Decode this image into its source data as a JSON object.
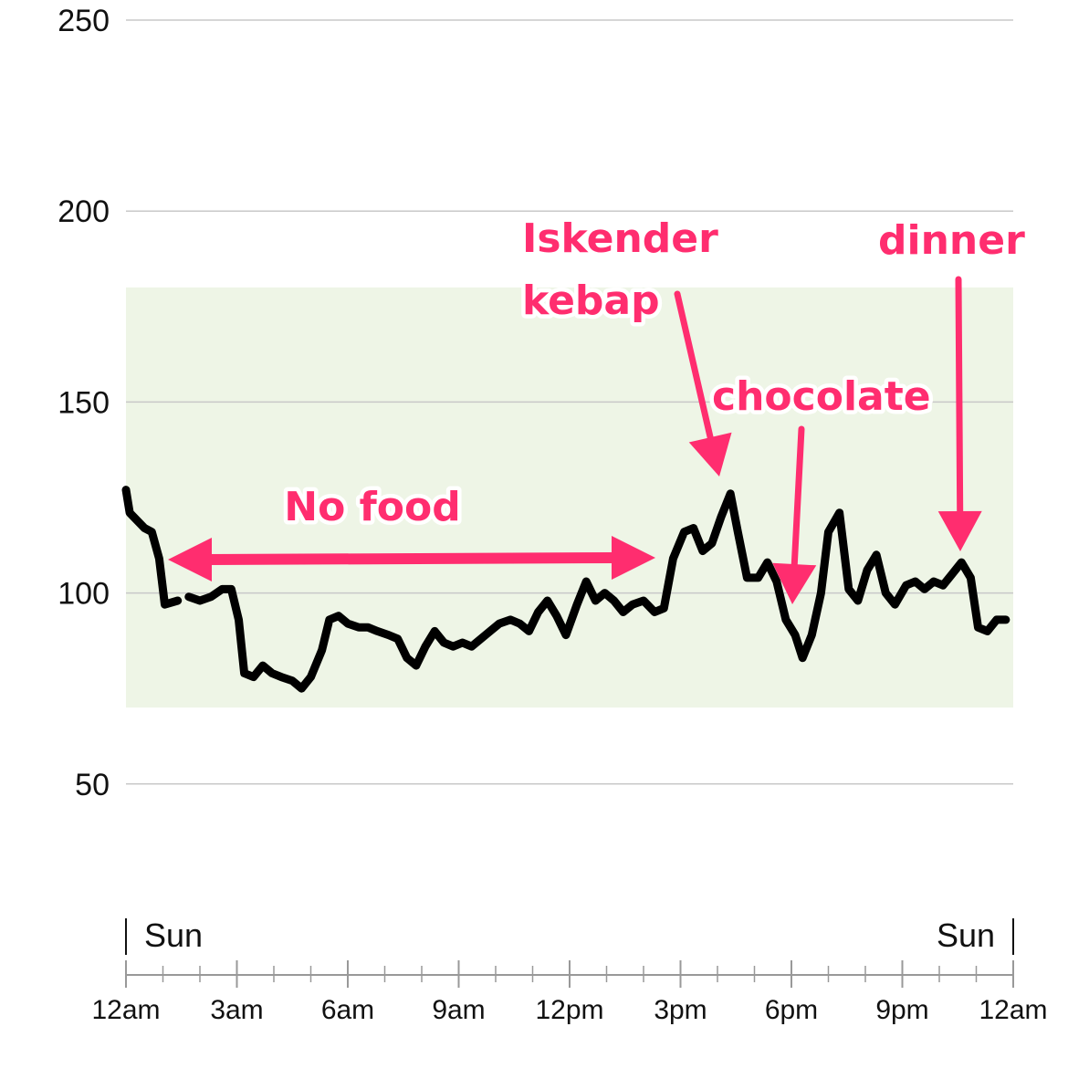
{
  "chart_data": {
    "type": "line",
    "title": "",
    "xlabel": "",
    "ylabel": "",
    "ylim": [
      0,
      250
    ],
    "yticks": [
      50,
      100,
      150,
      200,
      250
    ],
    "xlim": [
      0,
      24
    ],
    "xticks": [
      {
        "hour": 0,
        "label": "12am"
      },
      {
        "hour": 3,
        "label": "3am"
      },
      {
        "hour": 6,
        "label": "6am"
      },
      {
        "hour": 9,
        "label": "9am"
      },
      {
        "hour": 12,
        "label": "12pm"
      },
      {
        "hour": 15,
        "label": "3pm"
      },
      {
        "hour": 18,
        "label": "6pm"
      },
      {
        "hour": 21,
        "label": "9pm"
      },
      {
        "hour": 24,
        "label": "12am"
      }
    ],
    "day_labels": {
      "start": "Sun",
      "end": "Sun"
    },
    "target_range": {
      "low": 70,
      "high": 180,
      "color": "#eef5e6"
    },
    "grid": true,
    "line_color": "#000000",
    "annotation_color": "#ff2d6f",
    "series": [
      {
        "segments": [
          [
            [
              0,
              127
            ],
            [
              0.1,
              121
            ],
            [
              0.5,
              117
            ],
            [
              0.7,
              116
            ],
            [
              0.9,
              109
            ],
            [
              1.05,
              97
            ],
            [
              1.4,
              98
            ]
          ],
          [
            [
              1.7,
              99
            ],
            [
              2.0,
              98
            ],
            [
              2.3,
              99
            ],
            [
              2.6,
              101
            ],
            [
              2.85,
              101
            ],
            [
              3.05,
              93
            ],
            [
              3.2,
              79
            ],
            [
              3.45,
              78
            ],
            [
              3.7,
              81
            ],
            [
              3.95,
              79
            ],
            [
              4.2,
              78
            ],
            [
              4.5,
              77
            ],
            [
              4.75,
              75
            ],
            [
              5.0,
              78
            ],
            [
              5.3,
              85
            ],
            [
              5.5,
              93
            ],
            [
              5.75,
              94
            ],
            [
              6.0,
              92
            ],
            [
              6.3,
              91
            ],
            [
              6.55,
              91
            ],
            [
              6.8,
              90
            ],
            [
              7.1,
              89
            ],
            [
              7.35,
              88
            ],
            [
              7.6,
              83
            ],
            [
              7.85,
              81
            ],
            [
              8.1,
              86
            ],
            [
              8.35,
              90
            ],
            [
              8.6,
              87
            ],
            [
              8.85,
              86
            ],
            [
              9.1,
              87
            ],
            [
              9.35,
              86
            ],
            [
              9.6,
              88
            ],
            [
              9.85,
              90
            ],
            [
              10.1,
              92
            ],
            [
              10.4,
              93
            ],
            [
              10.65,
              92
            ],
            [
              10.9,
              90
            ],
            [
              11.15,
              95
            ],
            [
              11.4,
              98
            ],
            [
              11.65,
              94
            ],
            [
              11.9,
              89
            ],
            [
              12.2,
              97
            ],
            [
              12.45,
              103
            ],
            [
              12.7,
              98
            ],
            [
              12.95,
              100
            ],
            [
              13.2,
              98
            ],
            [
              13.45,
              95
            ],
            [
              13.7,
              97
            ],
            [
              14.0,
              98
            ],
            [
              14.3,
              95
            ],
            [
              14.55,
              96
            ],
            [
              14.8,
              109
            ],
            [
              15.1,
              116
            ],
            [
              15.35,
              117
            ],
            [
              15.6,
              111
            ],
            [
              15.85,
              113
            ],
            [
              16.1,
              120
            ],
            [
              16.35,
              126
            ],
            [
              16.55,
              116
            ],
            [
              16.8,
              104
            ],
            [
              17.1,
              104
            ],
            [
              17.35,
              108
            ],
            [
              17.6,
              103
            ],
            [
              17.85,
              93
            ],
            [
              18.1,
              89
            ],
            [
              18.3,
              83
            ],
            [
              18.55,
              89
            ],
            [
              18.8,
              100
            ],
            [
              19.0,
              116
            ],
            [
              19.3,
              121
            ],
            [
              19.55,
              101
            ],
            [
              19.8,
              98
            ],
            [
              20.05,
              106
            ],
            [
              20.3,
              110
            ],
            [
              20.55,
              100
            ],
            [
              20.8,
              97
            ],
            [
              21.1,
              102
            ],
            [
              21.35,
              103
            ],
            [
              21.6,
              101
            ],
            [
              21.85,
              103
            ],
            [
              22.1,
              102
            ],
            [
              22.35,
              105
            ],
            [
              22.6,
              108
            ],
            [
              22.85,
              104
            ],
            [
              23.05,
              91
            ],
            [
              23.3,
              90
            ],
            [
              23.55,
              93
            ],
            [
              23.8,
              93
            ]
          ]
        ]
      }
    ],
    "annotations": [
      {
        "lines": [
          "No food"
        ],
        "arrow": "double"
      },
      {
        "lines": [
          "Iskender",
          "kebap"
        ],
        "arrow": "down"
      },
      {
        "lines": [
          "chocolate"
        ],
        "arrow": "down"
      },
      {
        "lines": [
          "dinner"
        ],
        "arrow": "down"
      }
    ]
  }
}
